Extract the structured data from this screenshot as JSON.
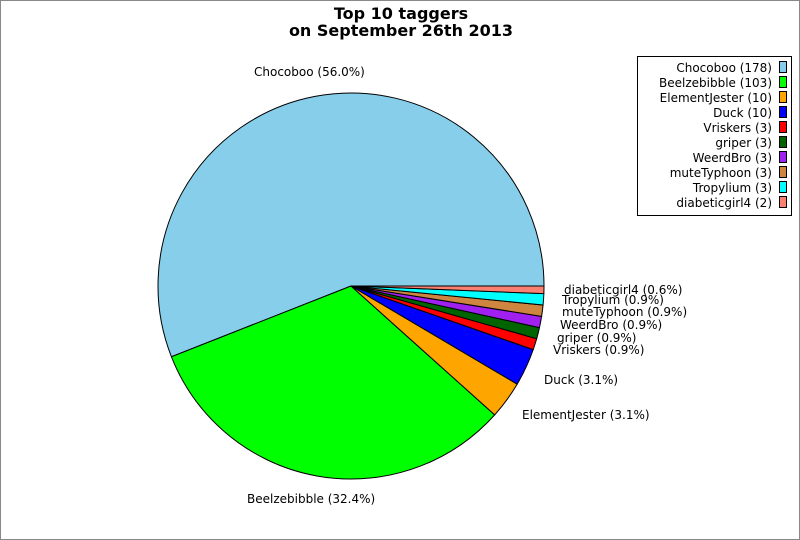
{
  "chart_data": {
    "type": "pie",
    "title": "Top 10 taggers",
    "subtitle": "on September 26th 2013",
    "categories": [
      "Chocoboo",
      "Beelzebibble",
      "ElementJester",
      "Duck",
      "Vriskers",
      "griper",
      "WeerdBro",
      "muteTyphoon",
      "Tropylium",
      "diabeticgirl4"
    ],
    "values": [
      178,
      103,
      10,
      10,
      3,
      3,
      3,
      3,
      3,
      2
    ],
    "percent_labels": [
      "56.0%",
      "32.4%",
      "3.1%",
      "3.1%",
      "0.9%",
      "0.9%",
      "0.9%",
      "0.9%",
      "0.9%",
      "0.6%"
    ],
    "colors": [
      "#87ceeb",
      "#00ff00",
      "#ffa500",
      "#0000ff",
      "#ff0000",
      "#006400",
      "#a020f0",
      "#cd853f",
      "#00ffff",
      "#fa8072"
    ],
    "start_angle_deg": 0,
    "direction": "counterclockwise",
    "legend_position": "top-right"
  }
}
